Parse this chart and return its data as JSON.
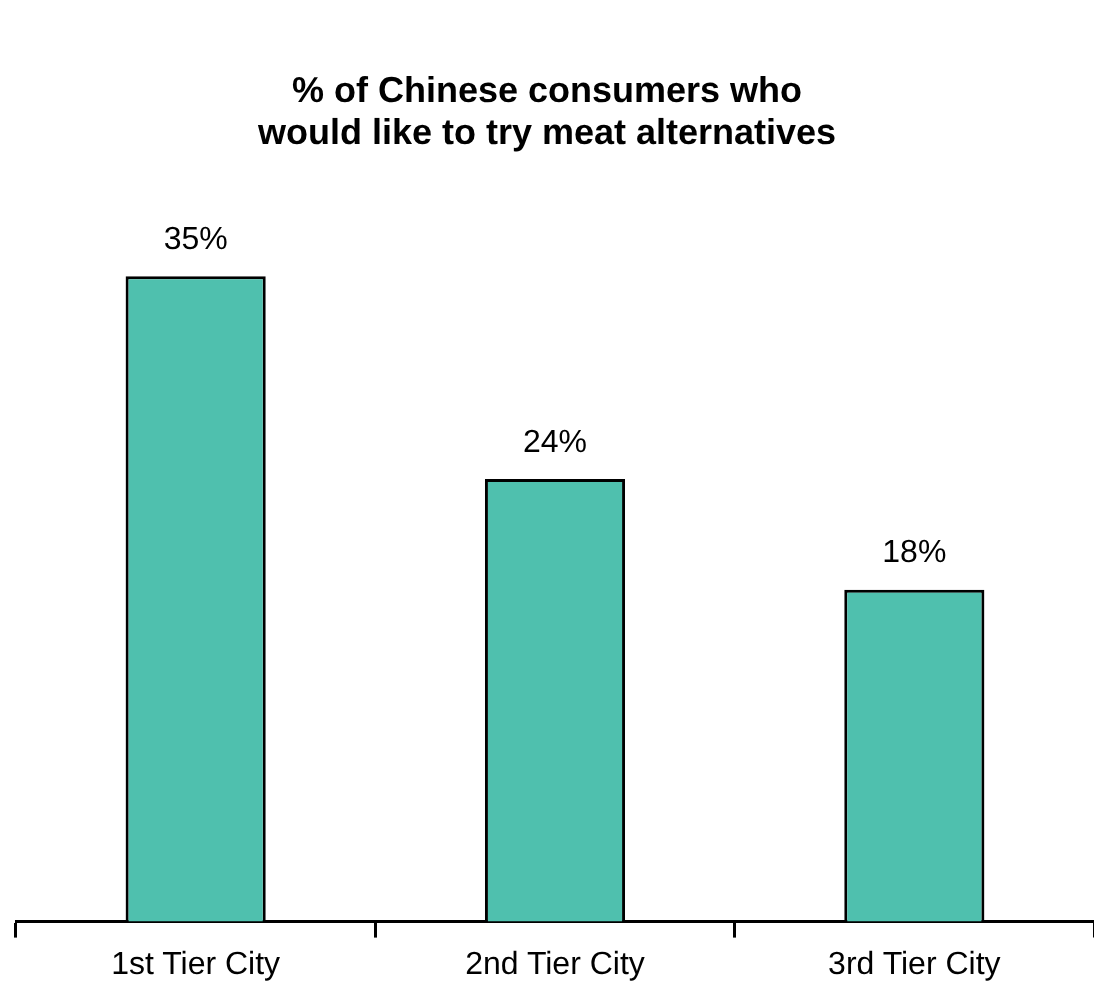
{
  "chart_data": {
    "type": "bar",
    "title": "% of Chinese consumers who would like to try meat alternatives",
    "categories": [
      "1st Tier City",
      "2nd Tier City",
      "3rd Tier City"
    ],
    "values": [
      35,
      24,
      18
    ],
    "value_labels": [
      "35%",
      "24%",
      "18%"
    ],
    "color": "#4fc0ae",
    "legend": false,
    "grid": false
  }
}
